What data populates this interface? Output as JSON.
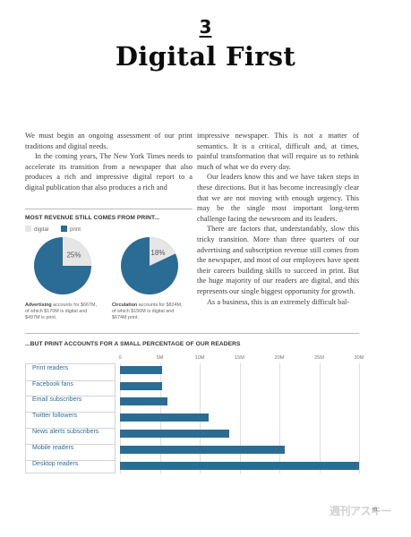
{
  "chapter": {
    "number": "3",
    "title": "Digital First"
  },
  "left_column": [
    "We must begin an ongoing assessment of our print traditions and digital needs.",
    "In the coming years, The New York Times needs to accelerate its transition from a newspaper that also produces a rich and impressive digital report to a digital publication that also produces a rich and"
  ],
  "right_column": [
    "impressive newspaper. This is not a matter of semantics. It is a critical, difficult and, at times, painful transformation that will require us to rethink much of what we do every day.",
    "Our leaders know this and we have taken steps in these directions. But it has become increasingly clear that we are not moving with enough urgency. This may be the single most important long-term challenge facing the newsroom and its leaders.",
    "There are factors that, understandably, slow this tricky transition. More than three quarters of our advertising and subscription revenue still comes from the newspaper, and most of our employees have spent their careers building skills to succeed in print. But the huge majority of our readers are digital, and this represents our single biggest opportunity for growth.",
    "As a business, this is an extremely difficult bal-"
  ],
  "chart_data": [
    {
      "type": "pie",
      "title": "MOST REVENUE STILL COMES FROM PRINT...",
      "legend": [
        "digital",
        "print"
      ],
      "colors": {
        "digital": "#e6e6e6",
        "print": "#2b6c94"
      },
      "pies": [
        {
          "label": "25%",
          "digital_share": 0.25,
          "caption_bold": "Advertising",
          "caption": "accounts for $667M, of which $170M is digital and $497M is print."
        },
        {
          "label": "18%",
          "digital_share": 0.18,
          "caption_bold": "Circulation",
          "caption": "accounts for $824M, of which $150M is digital and $674M print."
        }
      ]
    },
    {
      "type": "bar",
      "orientation": "horizontal",
      "title": "...BUT PRINT ACCOUNTS FOR A SMALL PERCENTAGE OF OUR READERS",
      "categories": [
        "Print readers",
        "Facebook fans",
        "Email subscribers",
        "Twitter followers",
        "News alerts subscribers",
        "Mobile readers",
        "Desktop readers"
      ],
      "values": [
        5.3,
        5.3,
        5.9,
        11.1,
        13.7,
        20.7,
        30.0
      ],
      "xlim": [
        0,
        30
      ],
      "ticks": [
        0,
        5,
        10,
        15,
        20,
        25,
        30
      ],
      "tick_labels": [
        "0",
        "5M",
        "10M",
        "15M",
        "20M",
        "25M",
        "30M"
      ],
      "bar_color": "#2b6c94"
    }
  ],
  "page_number": "81",
  "watermark": "週刊アスキー"
}
